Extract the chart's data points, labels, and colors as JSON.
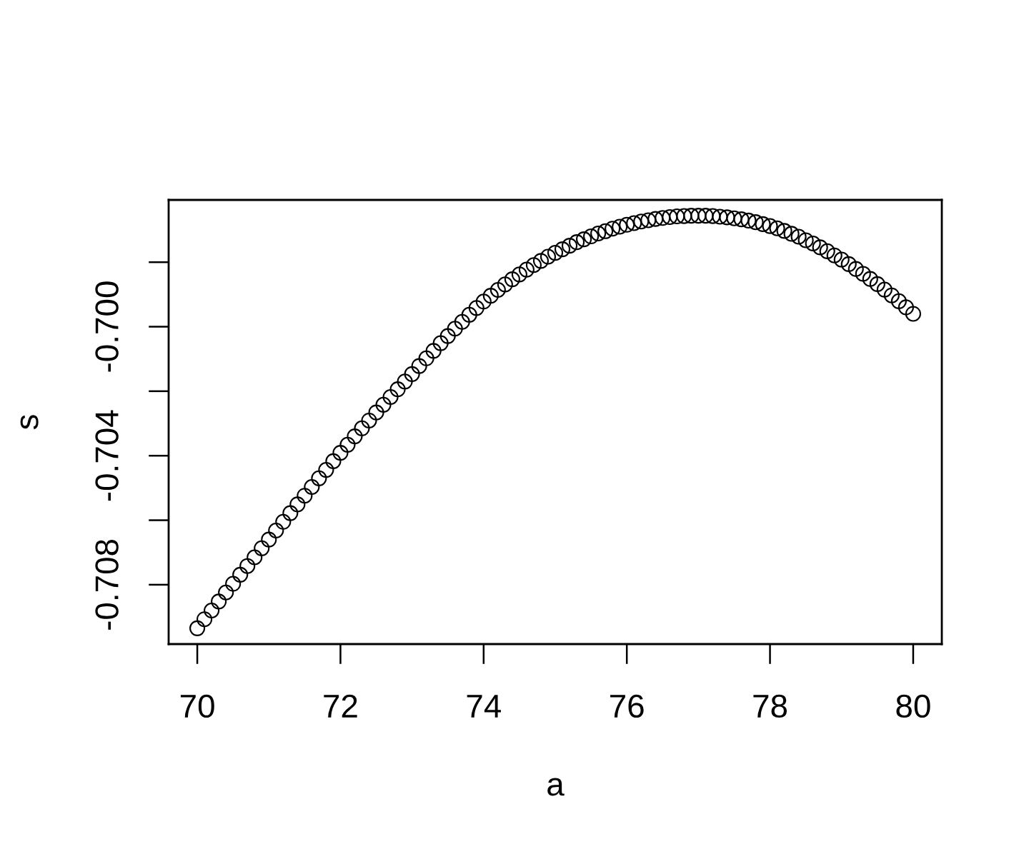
{
  "chart_data": {
    "type": "scatter",
    "xlabel": "a",
    "ylabel": "s",
    "marker": "circle",
    "xlim": [
      69.6,
      80.4
    ],
    "xticks": [
      70,
      72,
      74,
      76,
      78,
      80
    ],
    "ylim": [
      -0.70984,
      -0.69607
    ],
    "yticks": [
      -0.708,
      {
        "value": -0.706,
        "label": null
      },
      -0.704,
      {
        "value": -0.702,
        "label": null
      },
      {
        "value": -0.7,
        "label": "-0.700"
      },
      {
        "value": -0.698,
        "label": null
      }
    ],
    "x": [
      70,
      70.1,
      70.2,
      70.3,
      70.4,
      70.5,
      70.6,
      70.7,
      70.8,
      70.9,
      71,
      71.1,
      71.2,
      71.3,
      71.4,
      71.5,
      71.6,
      71.7,
      71.8,
      71.9,
      72,
      72.1,
      72.2,
      72.3,
      72.4,
      72.5,
      72.6,
      72.7,
      72.8,
      72.9,
      73,
      73.1,
      73.2,
      73.3,
      73.4,
      73.5,
      73.6,
      73.7,
      73.8,
      73.9,
      74,
      74.1,
      74.2,
      74.3,
      74.4,
      74.5,
      74.6,
      74.7,
      74.8,
      74.9,
      75,
      75.1,
      75.2,
      75.3,
      75.4,
      75.5,
      75.6,
      75.7,
      75.8,
      75.9,
      76,
      76.1,
      76.2,
      76.3,
      76.4,
      76.5,
      76.6,
      76.7,
      76.8,
      76.9,
      77,
      77.1,
      77.2,
      77.3,
      77.4,
      77.5,
      77.6,
      77.7,
      77.8,
      77.9,
      78,
      78.1,
      78.2,
      78.3,
      78.4,
      78.5,
      78.6,
      78.7,
      78.8,
      78.9,
      79,
      79.1,
      79.2,
      79.3,
      79.4,
      79.5,
      79.6,
      79.7,
      79.8,
      79.9,
      80
    ],
    "series": [
      {
        "color": "#000000",
        "values": [
          -0.70935,
          -0.70907,
          -0.7088,
          -0.70852,
          -0.70824,
          -0.70797,
          -0.70769,
          -0.70742,
          -0.70715,
          -0.70687,
          -0.7066,
          -0.70632,
          -0.70605,
          -0.70578,
          -0.70551,
          -0.70524,
          -0.70497,
          -0.7047,
          -0.70444,
          -0.70417,
          -0.70391,
          -0.70366,
          -0.7034,
          -0.70315,
          -0.70291,
          -0.70266,
          -0.70242,
          -0.70218,
          -0.70194,
          -0.7017,
          -0.70147,
          -0.70122,
          -0.70098,
          -0.70075,
          -0.70051,
          -0.70029,
          -0.70006,
          -0.69985,
          -0.69963,
          -0.69942,
          -0.69922,
          -0.69904,
          -0.69886,
          -0.69869,
          -0.69853,
          -0.69838,
          -0.69823,
          -0.69809,
          -0.69796,
          -0.69783,
          -0.69771,
          -0.6976,
          -0.69749,
          -0.69738,
          -0.69729,
          -0.6972,
          -0.69711,
          -0.69704,
          -0.69696,
          -0.6969,
          -0.69684,
          -0.69679,
          -0.69674,
          -0.6967,
          -0.69666,
          -0.69663,
          -0.6966,
          -0.69658,
          -0.69657,
          -0.69656,
          -0.69656,
          -0.69656,
          -0.69657,
          -0.69659,
          -0.69661,
          -0.69664,
          -0.69667,
          -0.69671,
          -0.69676,
          -0.69682,
          -0.69688,
          -0.69695,
          -0.69703,
          -0.69712,
          -0.69721,
          -0.69732,
          -0.69742,
          -0.69754,
          -0.69766,
          -0.69779,
          -0.69792,
          -0.69806,
          -0.69821,
          -0.69836,
          -0.69852,
          -0.69868,
          -0.69885,
          -0.69903,
          -0.69921,
          -0.6994,
          -0.6996
        ]
      }
    ]
  }
}
